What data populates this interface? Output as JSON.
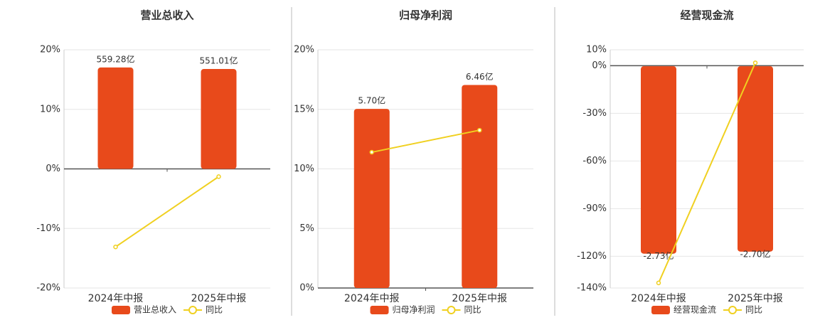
{
  "chart_data": [
    {
      "type": "bar",
      "title": "营业总收入",
      "categories": [
        "2024年中报",
        "2025年中报"
      ],
      "series": [
        {
          "name": "营业总收入",
          "color": "#e84a1b",
          "axis": "y2",
          "values": [
            559.28,
            551.01
          ],
          "value_labels": [
            "559.28亿",
            "551.01亿"
          ]
        },
        {
          "name": "同比",
          "color": "#f0d020",
          "type": "line",
          "values": [
            -13.1,
            -1.3
          ]
        }
      ],
      "ylim": [
        -20,
        20
      ],
      "yticks": [
        {
          "value": -20,
          "label": "-20%"
        },
        {
          "value": -10,
          "label": "-10%"
        },
        {
          "value": 0,
          "label": "0%"
        },
        {
          "value": 10,
          "label": "10%"
        },
        {
          "value": 20,
          "label": "20%"
        }
      ],
      "y2lim": [
        -657,
        657
      ],
      "grid": true
    },
    {
      "type": "bar",
      "title": "归母净利润",
      "categories": [
        "2024年中报",
        "2025年中报"
      ],
      "series": [
        {
          "name": "归母净利润",
          "color": "#e84a1b",
          "axis": "y2",
          "values": [
            5.7,
            6.46
          ],
          "value_labels": [
            "5.70亿",
            "6.46亿"
          ]
        },
        {
          "name": "同比",
          "color": "#f0d020",
          "type": "line",
          "values": [
            11.4,
            13.25
          ]
        }
      ],
      "ylim": [
        0,
        20
      ],
      "yticks": [
        {
          "value": 0,
          "label": "0%"
        },
        {
          "value": 5,
          "label": "5%"
        },
        {
          "value": 10,
          "label": "10%"
        },
        {
          "value": 15,
          "label": "15%"
        },
        {
          "value": 20,
          "label": "20%"
        }
      ],
      "y2lim": [
        0,
        7.58
      ],
      "grid": true
    },
    {
      "type": "bar",
      "title": "经营现金流",
      "categories": [
        "2024年中报",
        "2025年中报"
      ],
      "series": [
        {
          "name": "经营现金流",
          "color": "#e84a1b",
          "axis": "y2",
          "values": [
            -2.73,
            -2.7
          ],
          "value_labels": [
            "-2.73亿",
            "-2.70亿"
          ]
        },
        {
          "name": "同比",
          "color": "#f0d020",
          "type": "line",
          "values": [
            -136.8,
            1.8
          ]
        }
      ],
      "ylim": [
        -140,
        10
      ],
      "yticks": [
        {
          "value": -140,
          "label": "-140%"
        },
        {
          "value": -120,
          "label": "-120%"
        },
        {
          "value": -90,
          "label": "-90%"
        },
        {
          "value": -60,
          "label": "-60%"
        },
        {
          "value": -30,
          "label": "-30%"
        },
        {
          "value": 0,
          "label": "0%"
        },
        {
          "value": 10,
          "label": "10%"
        }
      ],
      "y2lim": [
        -3.23,
        0.24
      ],
      "grid": true
    }
  ]
}
